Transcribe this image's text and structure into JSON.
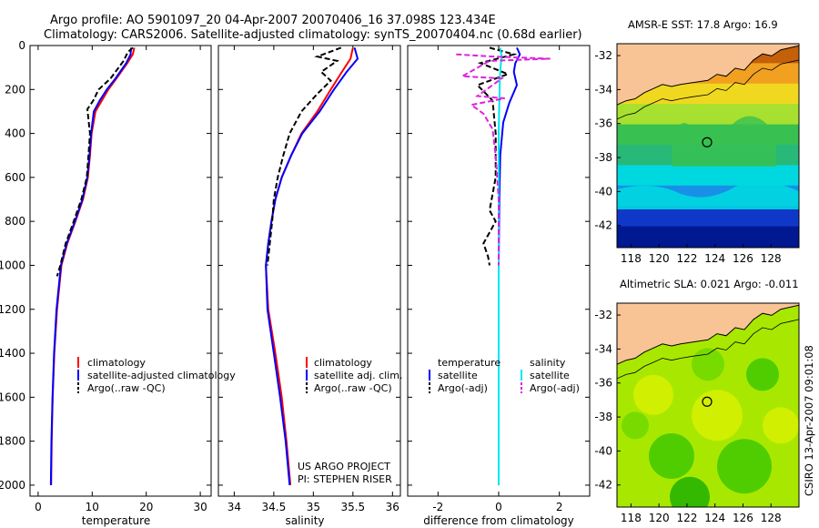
{
  "figure": {
    "title_line1": "Argo profile: AO 5901097_20 04-Apr-2007 20070406_16 37.098S 123.434E",
    "title_line2": "Climatology: CARS2006. Satellite-adjusted climatology: synTS_20070404.nc (0.68d earlier)",
    "credit": "CSIRO 13-Apr-2007 09:01:08",
    "project_line1": "US ARGO PROJECT",
    "project_line2": "PI: STEPHEN RISER"
  },
  "colors": {
    "climatology": "#ff0000",
    "satellite": "#0000ff",
    "argo": "#000000",
    "salinity_satellite": "#00e5ee",
    "salinity_argo": "#dd22dd",
    "land": "#f8c496"
  },
  "chart_data": [
    {
      "type": "line",
      "xlabel": "temperature",
      "ylabel": "",
      "xlim": [
        -1.5,
        32
      ],
      "ylim": [
        2050,
        0
      ],
      "xticks": [
        0,
        10,
        20,
        30
      ],
      "yticks": [
        0,
        200,
        400,
        600,
        800,
        1000,
        1200,
        1400,
        1600,
        1800,
        2000
      ],
      "legend": [
        "climatology",
        "satellite-adjusted climatology",
        "Argo(..raw -QC)"
      ],
      "series": [
        {
          "name": "climatology",
          "style": "solid",
          "color": "#ff0000",
          "x": [
            17.8,
            17.5,
            16.5,
            14.5,
            13.0,
            11.8,
            10.6,
            9.9,
            9.6,
            9.2,
            8.3,
            6.9,
            5.4,
            4.3,
            3.5,
            3.0,
            2.7,
            2.5,
            2.4
          ],
          "y": [
            10,
            40,
            80,
            150,
            200,
            250,
            300,
            400,
            500,
            600,
            700,
            800,
            900,
            1000,
            1200,
            1400,
            1600,
            1800,
            2000
          ]
        },
        {
          "name": "satellite-adjusted climatology",
          "style": "solid",
          "color": "#0000ff",
          "x": [
            17.2,
            17.1,
            16.3,
            14.3,
            12.7,
            11.4,
            10.3,
            9.8,
            9.5,
            9.1,
            8.2,
            6.8,
            5.3,
            4.2,
            3.4,
            2.95,
            2.65,
            2.45,
            2.35
          ],
          "y": [
            10,
            40,
            80,
            150,
            200,
            250,
            300,
            400,
            500,
            600,
            700,
            800,
            900,
            1000,
            1200,
            1400,
            1600,
            1800,
            2000
          ]
        },
        {
          "name": "Argo(..raw -QC)",
          "style": "dashed",
          "color": "#000000",
          "x": [
            17.5,
            16.6,
            15.8,
            13.4,
            11.2,
            10.2,
            9.1,
            9.6,
            9.3,
            9.0,
            8.0,
            6.3,
            5.1,
            4.1,
            3.5
          ],
          "y": [
            10,
            30,
            70,
            150,
            200,
            250,
            290,
            400,
            500,
            600,
            700,
            820,
            900,
            1000,
            1050
          ]
        }
      ]
    },
    {
      "type": "line",
      "xlabel": "salinity",
      "ylabel": "",
      "xlim": [
        33.8,
        36.1
      ],
      "ylim": [
        2050,
        0
      ],
      "xticks": [
        34,
        34.5,
        35,
        35.5,
        36
      ],
      "legend": [
        "climatology",
        "satellite adj. clim.",
        "Argo(..raw -QC)"
      ],
      "series": [
        {
          "name": "climatology",
          "style": "solid",
          "color": "#ff0000",
          "x": [
            35.5,
            35.47,
            35.36,
            35.22,
            35.05,
            34.85,
            34.72,
            34.6,
            34.52,
            34.47,
            34.43,
            34.4,
            34.43,
            34.52,
            34.6,
            34.66,
            34.71
          ],
          "y": [
            10,
            60,
            120,
            200,
            300,
            400,
            500,
            600,
            700,
            800,
            900,
            1000,
            1200,
            1400,
            1600,
            1800,
            2000
          ]
        },
        {
          "name": "satellite adj. clim.",
          "style": "solid",
          "color": "#0000ff",
          "x": [
            35.52,
            35.56,
            35.42,
            35.26,
            35.08,
            34.86,
            34.72,
            34.6,
            34.52,
            34.47,
            34.43,
            34.4,
            34.42,
            34.5,
            34.58,
            34.65,
            34.7
          ],
          "y": [
            10,
            60,
            120,
            200,
            300,
            400,
            500,
            600,
            700,
            800,
            900,
            1000,
            1200,
            1400,
            1600,
            1800,
            2000
          ]
        },
        {
          "name": "Argo(..raw -QC)",
          "style": "dashed",
          "color": "#000000",
          "x": [
            35.35,
            35.05,
            35.3,
            35.1,
            35.22,
            35.05,
            34.85,
            34.7,
            34.62,
            34.55,
            34.5,
            34.48,
            34.45,
            34.42
          ],
          "y": [
            10,
            50,
            70,
            120,
            160,
            220,
            300,
            400,
            500,
            600,
            700,
            800,
            900,
            1000
          ]
        }
      ]
    },
    {
      "type": "line",
      "xlabel": "difference from climatology",
      "ylabel": "",
      "xlim": [
        -3,
        3
      ],
      "ylim": [
        2050,
        0
      ],
      "xticks": [
        -2,
        0,
        2
      ],
      "legend": [
        "temperature",
        "satellite",
        "Argo(-adj)",
        "salinity",
        "satellite",
        "Argo(-adj)"
      ],
      "series": [
        {
          "name": "temperature satellite",
          "style": "solid",
          "color": "#0000ff",
          "x": [
            0.6,
            0.7,
            0.55,
            0.5,
            0.6,
            0.35,
            0.15,
            0.05,
            0.02,
            0.0,
            0.0,
            0.0
          ],
          "y": [
            10,
            40,
            80,
            120,
            180,
            260,
            350,
            500,
            700,
            1000,
            1500,
            2000
          ]
        },
        {
          "name": "temperature Argo(-adj)",
          "style": "dashed",
          "color": "#000000",
          "x": [
            -0.3,
            0.5,
            -0.6,
            0.3,
            -0.7,
            -0.2,
            -0.1,
            -0.1,
            -0.3,
            -0.1,
            -0.5,
            -0.35,
            -0.3
          ],
          "y": [
            10,
            40,
            80,
            130,
            180,
            250,
            400,
            600,
            750,
            800,
            900,
            960,
            1000
          ]
        },
        {
          "name": "salinity satellite",
          "style": "solid",
          "color": "#00e5ee",
          "x": [
            0.05,
            0.1,
            0.06,
            0.04,
            0.03,
            0.0,
            0.0,
            0.0,
            0.0,
            0.0
          ],
          "y": [
            10,
            50,
            100,
            150,
            200,
            400,
            700,
            1000,
            1500,
            2000
          ]
        },
        {
          "name": "salinity Argo(-adj)",
          "style": "dashed",
          "color": "#dd22dd",
          "x": [
            -1.4,
            -0.2,
            1.7,
            -0.3,
            -1.2,
            0.1,
            -0.7,
            0.2,
            -0.9,
            -0.5,
            -0.2,
            -0.1,
            0.0,
            0.0
          ],
          "y": [
            40,
            50,
            60,
            70,
            140,
            150,
            230,
            240,
            270,
            310,
            380,
            500,
            700,
            1000
          ]
        }
      ]
    }
  ],
  "maps": [
    {
      "title": "AMSR-E SST: 17.8 Argo: 16.9",
      "xticks": [
        "118",
        "120",
        "122",
        "124",
        "126",
        "128"
      ],
      "yticks": [
        "-32",
        "-34",
        "-36",
        "-38",
        "-40",
        "-42"
      ],
      "xlim": [
        117,
        130
      ],
      "ylim": [
        -43.3,
        -31.3
      ],
      "marker": {
        "lon": 123.434,
        "lat": -37.098
      },
      "colors": [
        "#c4600a",
        "#f2a020",
        "#f0d820",
        "#a8e030",
        "#38c050",
        "#28b878",
        "#00d8e0",
        "#1890e8",
        "#1038c8",
        "#001890"
      ]
    },
    {
      "title": "Altimetric SLA: 0.021 Argo: -0.011",
      "xticks": [
        "118",
        "120",
        "122",
        "124",
        "126",
        "128"
      ],
      "yticks": [
        "-32",
        "-34",
        "-36",
        "-38",
        "-40",
        "-42"
      ],
      "xlim": [
        117,
        130
      ],
      "ylim": [
        -43.3,
        -31.3
      ],
      "marker": {
        "lon": 123.434,
        "lat": -37.098
      },
      "colors": [
        "#d8f000",
        "#a8e800",
        "#70d800",
        "#40c800",
        "#20b000"
      ]
    }
  ]
}
